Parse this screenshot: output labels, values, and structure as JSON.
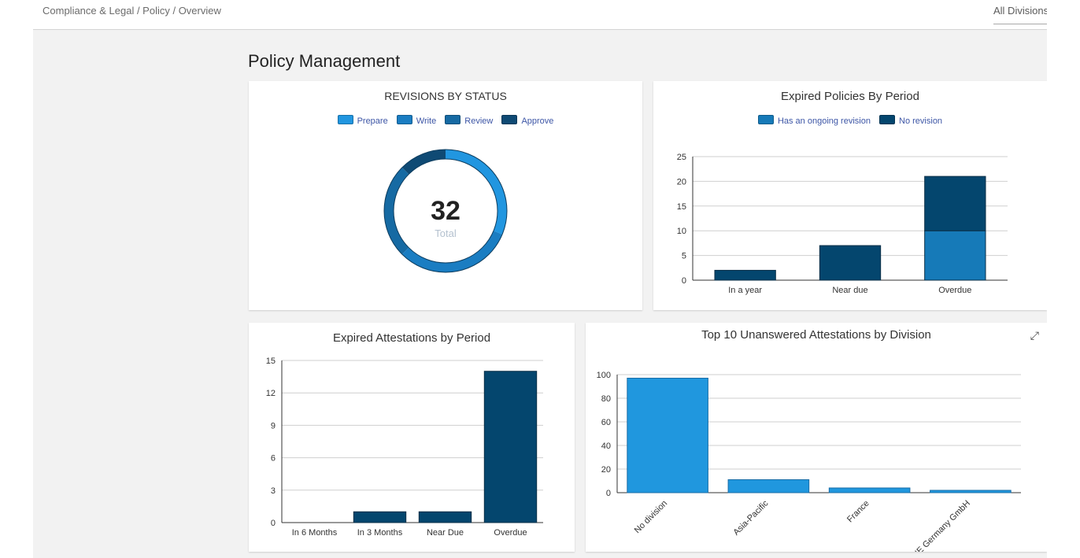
{
  "breadcrumb": "Compliance & Legal / Policy / Overview",
  "division_filter": "All Divisions",
  "page_title": "Policy Management",
  "colors": {
    "prepare": "#2196e0",
    "write": "#1a7dc2",
    "review": "#166aa3",
    "approve": "#0f4a74",
    "ongoing": "#167ab8",
    "no_revision": "#04466e",
    "attest_bar": "#04466e",
    "division_bar": "#2097de"
  },
  "revisions": {
    "title": "REVISIONS BY STATUS",
    "legend": [
      "Prepare",
      "Write",
      "Review",
      "Approve"
    ],
    "total": "32",
    "total_label": "Total"
  },
  "expired_policies": {
    "title": "Expired Policies By Period",
    "legend": [
      "Has an ongoing revision",
      "No revision"
    ]
  },
  "expired_attestations": {
    "title": "Expired Attestations by Period"
  },
  "top10": {
    "title": "Top 10 Unanswered Attestations by Division",
    "expand_icon": "expand-icon"
  },
  "chart_data": [
    {
      "type": "pie",
      "title": "REVISIONS BY STATUS",
      "categories": [
        "Prepare",
        "Write",
        "Review",
        "Approve"
      ],
      "values": [
        10,
        10,
        8,
        4
      ],
      "total": 32
    },
    {
      "type": "bar",
      "title": "Expired Policies By Period",
      "stacked": true,
      "categories": [
        "In a year",
        "Near due",
        "Overdue"
      ],
      "series": [
        {
          "name": "Has an ongoing revision",
          "values": [
            0,
            0,
            10
          ]
        },
        {
          "name": "No revision",
          "values": [
            2,
            7,
            11
          ]
        }
      ],
      "ylim": [
        0,
        25
      ],
      "yticks": [
        0,
        5,
        10,
        15,
        20,
        25
      ],
      "grid": true
    },
    {
      "type": "bar",
      "title": "Expired Attestations by Period",
      "categories": [
        "In 6 Months",
        "In 3 Months",
        "Near Due",
        "Overdue"
      ],
      "values": [
        0,
        1,
        1,
        14
      ],
      "ylim": [
        0,
        15
      ],
      "yticks": [
        0,
        3,
        6,
        9,
        12,
        15
      ],
      "grid": true
    },
    {
      "type": "bar",
      "title": "Top 10 Unanswered Attestations by Division",
      "categories": [
        "No division",
        "Asia-Pacific",
        "France",
        "IE Germany GmbH"
      ],
      "values": [
        97,
        11,
        4,
        2
      ],
      "ylim": [
        0,
        100
      ],
      "yticks": [
        0,
        20,
        40,
        60,
        80,
        100
      ],
      "grid": true
    }
  ]
}
